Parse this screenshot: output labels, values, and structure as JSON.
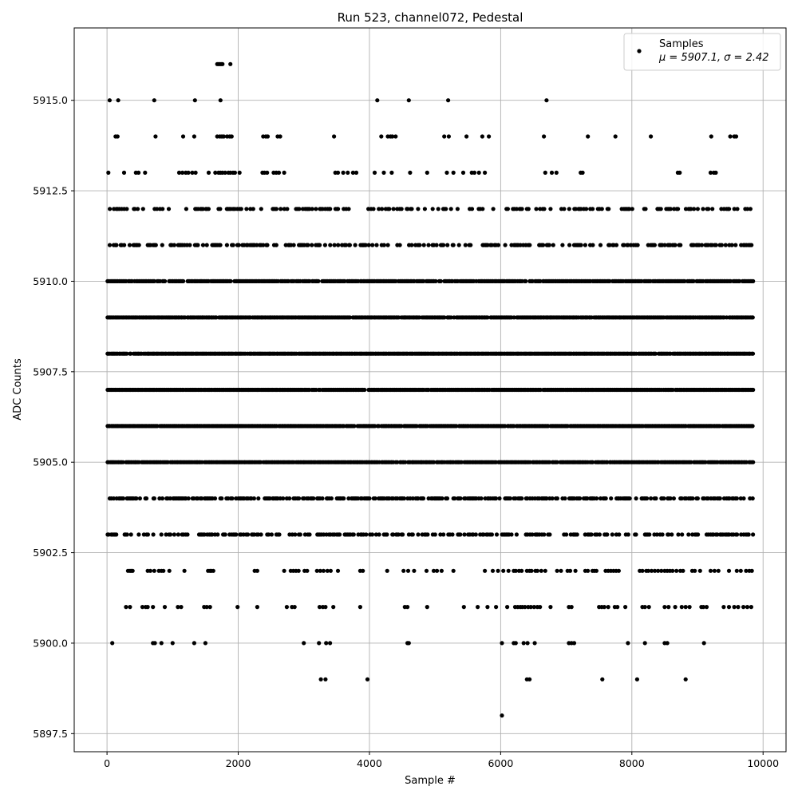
{
  "chart_data": {
    "type": "scatter",
    "title": "Run 523, channel072, Pedestal",
    "xlabel": "Sample #",
    "ylabel": "ADC Counts",
    "xlim": [
      -500,
      10350
    ],
    "ylim": [
      5897,
      5917
    ],
    "xticks": [
      0,
      2000,
      4000,
      6000,
      8000,
      10000
    ],
    "xtick_labels": [
      "0",
      "2000",
      "4000",
      "6000",
      "8000",
      "10000"
    ],
    "yticks": [
      5897.5,
      5900.0,
      5902.5,
      5905.0,
      5907.5,
      5910.0,
      5912.5,
      5915.0
    ],
    "ytick_labels": [
      "5897.5",
      "5900.0",
      "5902.5",
      "5905.0",
      "5907.5",
      "5910.0",
      "5912.5",
      "5915.0"
    ],
    "grid": true,
    "legend_position": "top-right",
    "marker_color": "#000000",
    "series": [
      {
        "name": "Samples",
        "stats_label": "μ = 5907.1, σ = 2.42",
        "mean": 5907.1,
        "sigma": 2.42,
        "x_range": [
          0,
          9840
        ],
        "levels": [
          {
            "y": 5916,
            "x": [
              1680,
              1700,
              1720,
              1740,
              1760,
              1880
            ]
          },
          {
            "y": 5915,
            "x": [
              40,
              170,
              720,
              1340,
              1730,
              4120,
              4600,
              5200,
              6700
            ]
          },
          {
            "y": 5914,
            "x": [
              130,
              160,
              740,
              1160,
              1330,
              1680,
              1720,
              1750,
              1780,
              1830,
              1870,
              1900,
              2380,
              2420,
              2450,
              2600,
              2640,
              3460,
              4180,
              4280,
              4320,
              4350,
              4400,
              5140,
              5210,
              5480,
              5720,
              5820,
              6660,
              7330,
              7750,
              8290,
              9210,
              9500,
              9560,
              9590
            ]
          },
          {
            "y": 5913,
            "x": [
              20,
              260,
              440,
              480,
              580,
              1100,
              1150,
              1200,
              1240,
              1300,
              1350,
              1550,
              1650,
              1700,
              1730,
              1760,
              1800,
              1850,
              1880,
              1920,
              1950,
              2020,
              2370,
              2400,
              2440,
              2540,
              2580,
              2620,
              2700,
              3480,
              3520,
              3600,
              3670,
              3750,
              3800,
              4080,
              4220,
              4340,
              4620,
              4880,
              5180,
              5280,
              5430,
              5560,
              5600,
              5670,
              5760,
              6680,
              6780,
              6850,
              7220,
              7250,
              8700,
              8730,
              9200,
              9250,
              9280
            ]
          },
          {
            "y": 5912,
            "density": 0.35,
            "seed": 12
          },
          {
            "y": 5911,
            "density": 0.45,
            "seed": 11
          },
          {
            "y": 5910,
            "density": 0.92,
            "seed": 10
          },
          {
            "y": 5909,
            "density": 0.96,
            "seed": 9
          },
          {
            "y": 5908,
            "density": 0.98,
            "seed": 8
          },
          {
            "y": 5907,
            "density": 0.98,
            "seed": 7
          },
          {
            "y": 5906,
            "density": 0.96,
            "seed": 6
          },
          {
            "y": 5905,
            "density": 0.95,
            "seed": 5
          },
          {
            "y": 5904,
            "density": 0.6,
            "seed": 4
          },
          {
            "y": 5903,
            "density": 0.5,
            "seed": 3
          },
          {
            "y": 5902,
            "x": [
              320,
              350,
              370,
              390,
              620,
              660,
              720,
              790,
              830,
              860,
              950,
              1180,
              1540,
              1570,
              1590,
              1620,
              2250,
              2290,
              2700,
              2800,
              2840,
              2880,
              2920,
              3010,
              3050,
              3200,
              3250,
              3300,
              3360,
              3410,
              3520,
              3860,
              3900,
              4270,
              4520,
              4590,
              4680,
              4870,
              4980,
              5030,
              5100,
              5280,
              5760,
              5880,
              5960,
              6040,
              6120,
              6200,
              6230,
              6280,
              6320,
              6400,
              6440,
              6470,
              6530,
              6560,
              6620,
              6680,
              6860,
              6920,
              7020,
              7060,
              7140,
              7290,
              7330,
              7400,
              7430,
              7460,
              7600,
              7640,
              7680,
              7720,
              7760,
              7800,
              8120,
              8160,
              8220,
              8250,
              8300,
              8350,
              8400,
              8450,
              8500,
              8540,
              8580,
              8620,
              8680,
              8740,
              8780,
              8920,
              8960,
              9040,
              9200,
              9260,
              9320,
              9480,
              9600,
              9660,
              9740,
              9790,
              9830
            ]
          },
          {
            "y": 5901,
            "x": [
              290,
              350,
              540,
              590,
              620,
              700,
              880,
              1080,
              1130,
              1480,
              1520,
              1570,
              1990,
              2290,
              2740,
              2820,
              2860,
              3240,
              3290,
              3330,
              3450,
              3860,
              4540,
              4580,
              4880,
              5440,
              5650,
              5800,
              5930,
              6100,
              6220,
              6260,
              6300,
              6330,
              6370,
              6420,
              6460,
              6510,
              6560,
              6600,
              6760,
              7040,
              7080,
              7500,
              7540,
              7580,
              7640,
              7740,
              7780,
              7900,
              8160,
              8200,
              8260,
              8500,
              8560,
              8660,
              8760,
              8820,
              8880,
              9060,
              9090,
              9140,
              9400,
              9480,
              9560,
              9620,
              9700,
              9760,
              9820
            ]
          },
          {
            "y": 5900,
            "x": [
              80,
              700,
              730,
              830,
              1000,
              1330,
              1500,
              3000,
              3230,
              3340,
              3400,
              4580,
              4600,
              6020,
              6200,
              6230,
              6350,
              6410,
              6520,
              7040,
              7080,
              7120,
              7940,
              8200,
              8500,
              8540,
              9100
            ]
          },
          {
            "y": 5899,
            "x": [
              3260,
              3330,
              3970,
              6400,
              6440,
              7550,
              8080,
              8820
            ]
          },
          {
            "y": 5898,
            "x": [
              6020
            ]
          }
        ]
      }
    ]
  }
}
